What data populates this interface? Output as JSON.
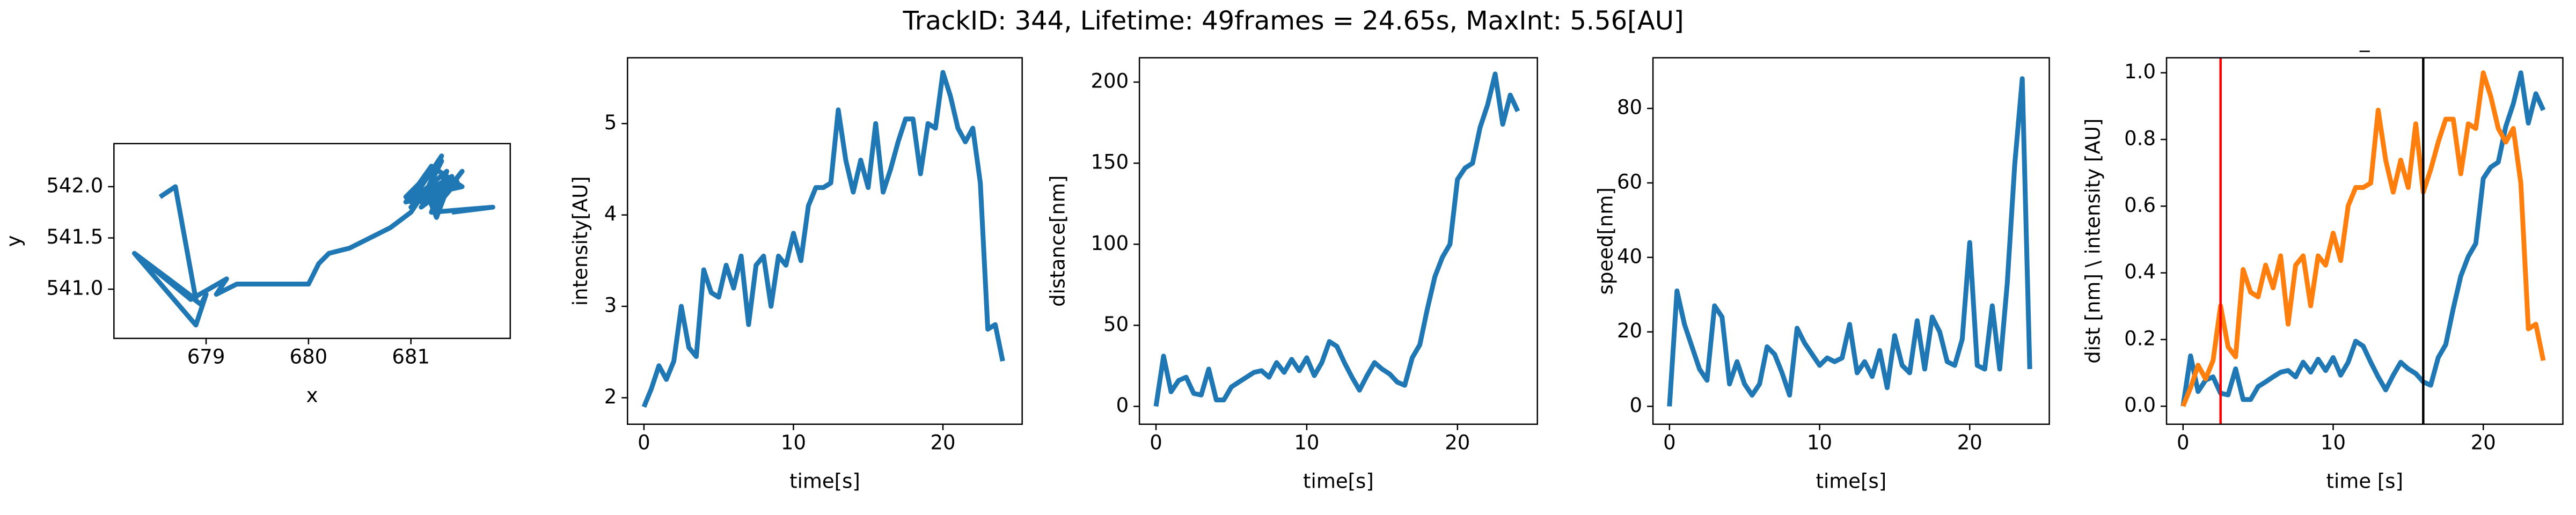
{
  "title": "TrackID: 344, Lifetime: 49frames = 24.65s, MaxInt: 5.56[AU]",
  "chart_data": [
    {
      "type": "line",
      "xlabel": "x",
      "ylabel": "y",
      "color": "#1f77b4",
      "x": [
        678.55,
        678.7,
        678.9,
        678.3,
        678.9,
        679.0,
        678.95,
        678.3,
        678.85,
        679.2,
        679.1,
        679.3,
        680.0,
        680.1,
        680.2,
        680.4,
        680.6,
        680.8,
        681.0,
        681.1,
        681.2,
        681.0,
        681.3,
        681.15,
        681.4,
        681.1,
        681.3,
        680.95,
        681.2,
        681.5,
        681.05,
        681.35,
        681.2,
        681.45,
        681.1,
        681.3,
        680.95,
        681.25,
        681.0,
        681.4,
        681.25,
        681.15,
        681.35,
        681.05,
        681.3,
        681.5,
        681.2,
        681.8,
        681.4
      ],
      "values": [
        541.9,
        542.0,
        540.9,
        541.35,
        540.65,
        540.95,
        540.85,
        541.35,
        540.9,
        541.1,
        540.95,
        541.05,
        541.05,
        541.25,
        541.35,
        541.4,
        541.5,
        541.6,
        541.75,
        541.9,
        542.0,
        541.85,
        542.3,
        541.95,
        542.1,
        541.8,
        541.95,
        541.85,
        542.2,
        542.0,
        541.9,
        542.15,
        541.75,
        542.05,
        541.85,
        542.25,
        541.9,
        542.0,
        541.8,
        542.1,
        541.7,
        541.95,
        542.05,
        541.85,
        541.9,
        542.15,
        541.75,
        541.8,
        541.75
      ],
      "xlim": [
        678.1,
        681.97
      ],
      "xticks": [
        679,
        680,
        681
      ],
      "ylim": [
        540.52,
        542.42
      ],
      "yticks": [
        {
          "value": 541,
          "label": "541.0"
        },
        541.5,
        {
          "value": 542,
          "label": "542.0"
        }
      ]
    },
    {
      "type": "line",
      "xlabel": "time[s]",
      "ylabel": "intensity[AU]",
      "color": "#1f77b4",
      "x": [
        0,
        0.5,
        1,
        1.5,
        2,
        2.5,
        3,
        3.5,
        4,
        4.5,
        5,
        5.5,
        6,
        6.5,
        7,
        7.5,
        8,
        8.5,
        9,
        9.5,
        10,
        10.5,
        11,
        11.5,
        12,
        12.5,
        13,
        13.5,
        14,
        14.5,
        15,
        15.5,
        16,
        16.5,
        17,
        17.5,
        18,
        18.5,
        19,
        19.5,
        20,
        20.5,
        21,
        21.5,
        22,
        22.5,
        23,
        23.5,
        24
      ],
      "values": [
        1.9,
        2.1,
        2.35,
        2.2,
        2.4,
        3.0,
        2.55,
        2.45,
        3.4,
        3.15,
        3.1,
        3.45,
        3.2,
        3.55,
        2.8,
        3.45,
        3.55,
        3.0,
        3.55,
        3.45,
        3.8,
        3.5,
        4.1,
        4.3,
        4.3,
        4.35,
        5.15,
        4.6,
        4.25,
        4.6,
        4.3,
        5.0,
        4.25,
        4.5,
        4.8,
        5.05,
        5.05,
        4.45,
        5.0,
        4.95,
        5.56,
        5.3,
        4.95,
        4.8,
        4.95,
        4.35,
        2.75,
        2.8,
        2.4
      ],
      "xlim": [
        -1.1,
        25.3
      ],
      "xticks": [
        0,
        10,
        20
      ],
      "ylim": [
        1.71,
        5.72
      ],
      "yticks": [
        2,
        3,
        4,
        5
      ]
    },
    {
      "type": "line",
      "xlabel": "time[s]",
      "ylabel": "distance[nm]",
      "color": "#1f77b4",
      "x": [
        0,
        0.5,
        1,
        1.5,
        2,
        2.5,
        3,
        3.5,
        4,
        4.5,
        5,
        5.5,
        6,
        6.5,
        7,
        7.5,
        8,
        8.5,
        9,
        9.5,
        10,
        10.5,
        11,
        11.5,
        12,
        12.5,
        13,
        13.5,
        14,
        14.5,
        15,
        15.5,
        16,
        16.5,
        17,
        17.5,
        18,
        18.5,
        19,
        19.5,
        20,
        20.5,
        21,
        21.5,
        22,
        22.5,
        23,
        23.5,
        24
      ],
      "values": [
        0,
        31,
        9,
        16,
        18,
        8,
        7,
        23,
        4,
        4,
        12,
        15,
        18,
        21,
        22,
        18,
        27,
        21,
        29,
        22,
        30,
        19,
        27,
        40,
        37,
        27,
        18,
        10,
        19,
        27,
        23,
        20,
        15,
        13,
        30,
        38,
        60,
        80,
        92,
        100,
        140,
        147,
        150,
        172,
        186,
        205,
        174,
        192,
        182
      ],
      "xlim": [
        -1.1,
        25.3
      ],
      "xticks": [
        0,
        10,
        20
      ],
      "ylim": [
        -11,
        215
      ],
      "yticks": [
        0,
        50,
        100,
        150,
        200
      ]
    },
    {
      "type": "line",
      "xlabel": "time[s]",
      "ylabel": "speed[nm]",
      "color": "#1f77b4",
      "x": [
        0,
        0.5,
        1,
        1.5,
        2,
        2.5,
        3,
        3.5,
        4,
        4.5,
        5,
        5.5,
        6,
        6.5,
        7,
        7.5,
        8,
        8.5,
        9,
        9.5,
        10,
        10.5,
        11,
        11.5,
        12,
        12.5,
        13,
        13.5,
        14,
        14.5,
        15,
        15.5,
        16,
        16.5,
        17,
        17.5,
        18,
        18.5,
        19,
        19.5,
        20,
        20.5,
        21,
        21.5,
        22,
        22.5,
        23,
        23.5,
        24
      ],
      "values": [
        0,
        31,
        22,
        16,
        10,
        7,
        27,
        24,
        6,
        12,
        6,
        3,
        6,
        16,
        14,
        9,
        3,
        21,
        17,
        14,
        11,
        13,
        12,
        13,
        22,
        9,
        12,
        8,
        15,
        5,
        19,
        11,
        9,
        23,
        10,
        24,
        20,
        12,
        11,
        18,
        44,
        11,
        10,
        27,
        10,
        33,
        65,
        88,
        10
      ],
      "xlim": [
        -1.1,
        25.3
      ],
      "xticks": [
        0,
        10,
        20
      ],
      "ylim": [
        -4.8,
        93.6
      ],
      "yticks": [
        0,
        20,
        40,
        60,
        80
      ]
    },
    {
      "type": "line",
      "title": "_",
      "xlabel": "time [s]",
      "ylabel": "dist [nm] \\ intensity [AU]",
      "x": [
        0,
        0.5,
        1,
        1.5,
        2,
        2.5,
        3,
        3.5,
        4,
        4.5,
        5,
        5.5,
        6,
        6.5,
        7,
        7.5,
        8,
        8.5,
        9,
        9.5,
        10,
        10.5,
        11,
        11.5,
        12,
        12.5,
        13,
        13.5,
        14,
        14.5,
        15,
        15.5,
        16,
        16.5,
        17,
        17.5,
        18,
        18.5,
        19,
        19.5,
        20,
        20.5,
        21,
        21.5,
        22,
        22.5,
        23,
        23.5,
        24
      ],
      "series": [
        {
          "color": "#1f77b4",
          "values": [
            0,
            0.151,
            0.044,
            0.078,
            0.088,
            0.039,
            0.034,
            0.112,
            0.02,
            0.02,
            0.059,
            0.073,
            0.088,
            0.102,
            0.107,
            0.088,
            0.132,
            0.102,
            0.141,
            0.107,
            0.146,
            0.093,
            0.132,
            0.195,
            0.18,
            0.132,
            0.088,
            0.049,
            0.093,
            0.132,
            0.112,
            0.098,
            0.073,
            0.063,
            0.146,
            0.185,
            0.293,
            0.39,
            0.449,
            0.488,
            0.683,
            0.717,
            0.732,
            0.839,
            0.907,
            1.0,
            0.849,
            0.937,
            0.888
          ]
        },
        {
          "color": "#ff7f0e",
          "values": [
            0,
            0.055,
            0.123,
            0.082,
            0.137,
            0.301,
            0.178,
            0.148,
            0.41,
            0.342,
            0.328,
            0.423,
            0.355,
            0.451,
            0.246,
            0.423,
            0.451,
            0.301,
            0.451,
            0.423,
            0.519,
            0.437,
            0.601,
            0.656,
            0.656,
            0.669,
            0.888,
            0.738,
            0.642,
            0.738,
            0.656,
            0.847,
            0.642,
            0.71,
            0.792,
            0.861,
            0.861,
            0.697,
            0.847,
            0.833,
            1.0,
            0.929,
            0.833,
            0.792,
            0.833,
            0.669,
            0.232,
            0.246,
            0.137
          ]
        }
      ],
      "vlines": [
        {
          "x": 2.5,
          "color": "#ff0000"
        },
        {
          "x": 16,
          "color": "#000000"
        }
      ],
      "xlim": [
        -1.1,
        25.3
      ],
      "xticks": [
        0,
        10,
        20
      ],
      "ylim": [
        -0.054,
        1.045
      ],
      "yticks": [
        {
          "value": 0,
          "label": "0.0"
        },
        0.2,
        0.4,
        0.6,
        0.8,
        {
          "value": 1,
          "label": "1.0"
        }
      ]
    }
  ]
}
